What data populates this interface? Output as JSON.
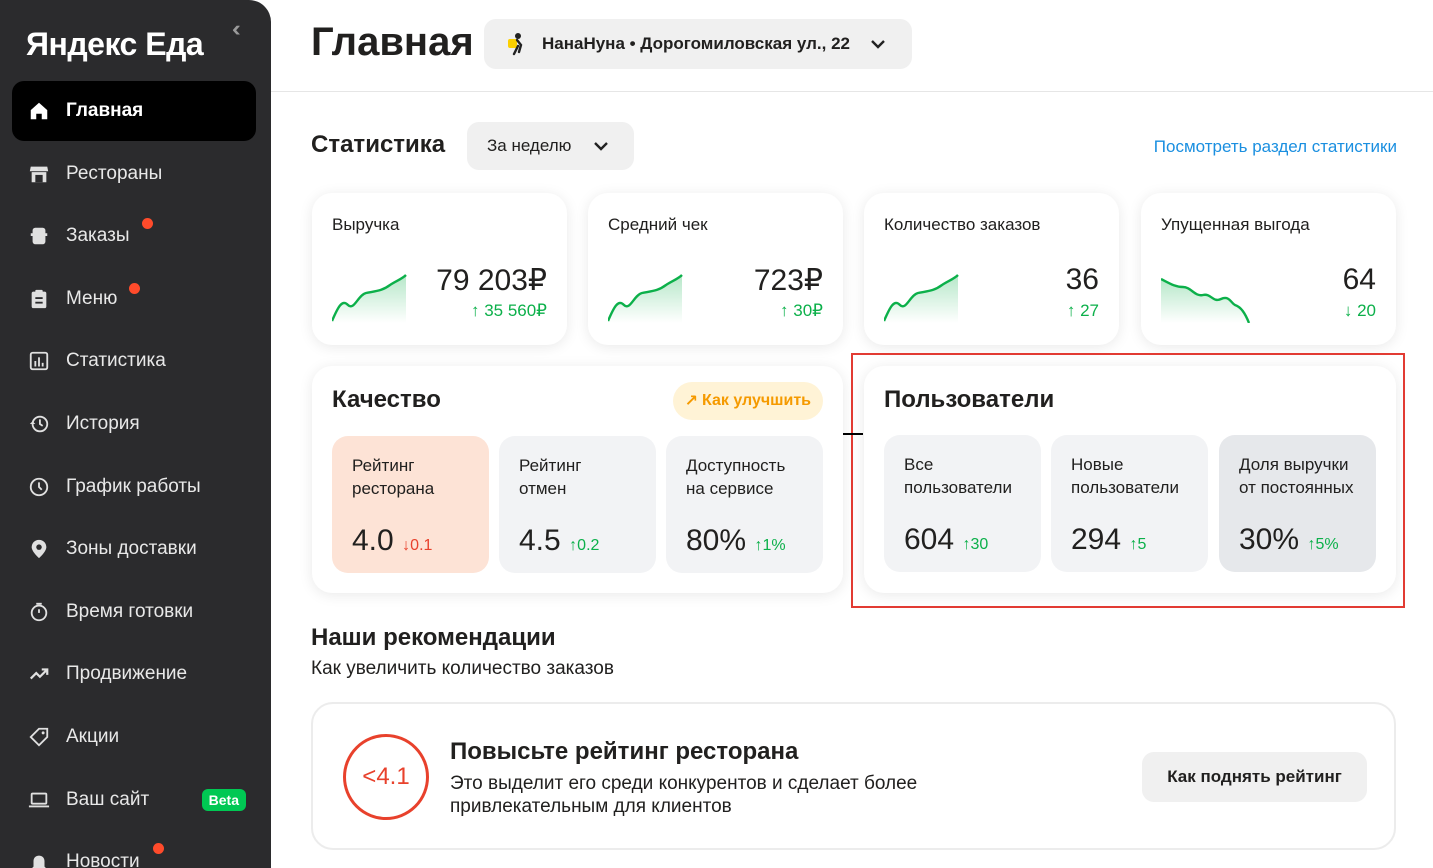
{
  "app": {
    "logo": "Яндекс Еда",
    "collapse_icon": "chevrons-left-icon"
  },
  "sidebar": {
    "items": [
      {
        "label": "Главная",
        "icon": "home-icon",
        "active": true
      },
      {
        "label": "Рестораны",
        "icon": "store-icon"
      },
      {
        "label": "Заказы",
        "icon": "orders-icon",
        "badge_dot": true
      },
      {
        "label": "Меню",
        "icon": "menu-clipboard-icon",
        "badge_dot": true
      },
      {
        "label": "Статистика",
        "icon": "chart-icon"
      },
      {
        "label": "История",
        "icon": "history-icon"
      },
      {
        "label": "График работы",
        "icon": "clock-icon"
      },
      {
        "label": "Зоны доставки",
        "icon": "location-pin-icon"
      },
      {
        "label": "Время готовки",
        "icon": "timer-icon"
      },
      {
        "label": "Продвижение",
        "icon": "trend-up-icon"
      },
      {
        "label": "Акции",
        "icon": "tag-icon"
      },
      {
        "label": "Ваш сайт",
        "icon": "laptop-icon",
        "badge": "Beta"
      },
      {
        "label": "Новости",
        "icon": "bell-icon",
        "badge_dot": true
      }
    ]
  },
  "header": {
    "title": "Главная",
    "place": "НанаНуна • Дорогомиловская ул., 22"
  },
  "stats": {
    "title": "Статистика",
    "period": "За неделю",
    "link": "Посмотреть раздел статистики",
    "metrics": [
      {
        "label": "Выручка",
        "value": "79 203₽",
        "delta": "35 560₽",
        "direction": "up"
      },
      {
        "label": "Средний чек",
        "value": "723₽",
        "delta": "30₽",
        "direction": "up"
      },
      {
        "label": "Количество заказов",
        "value": "36",
        "delta": "27",
        "direction": "up"
      },
      {
        "label": "Упущенная выгода",
        "value": "64",
        "delta": "20",
        "direction": "down"
      }
    ]
  },
  "quality": {
    "title": "Качество",
    "improve": "Как улучшить",
    "items": [
      {
        "label_line1": "Рейтинг",
        "label_line2": "ресторана",
        "value": "4.0",
        "delta": "0.1",
        "direction": "down"
      },
      {
        "label_line1": "Рейтинг",
        "label_line2": "отмен",
        "value": "4.5",
        "delta": "0.2",
        "direction": "up"
      },
      {
        "label_line1": "Доступность",
        "label_line2": "на сервисе",
        "value": "80%",
        "delta": "1%",
        "direction": "up"
      }
    ]
  },
  "users": {
    "title": "Пользователи",
    "items": [
      {
        "label_line1": "Все",
        "label_line2": "пользователи",
        "value": "604",
        "delta": "30",
        "direction": "up"
      },
      {
        "label_line1": "Новые",
        "label_line2": "пользователи",
        "value": "294",
        "delta": "5",
        "direction": "up"
      },
      {
        "label_line1": "Доля выручки",
        "label_line2": "от постоянных",
        "value": "30%",
        "delta": "5%",
        "direction": "up"
      }
    ]
  },
  "recommendations": {
    "title": "Наши рекомендации",
    "subtitle": "Как увеличить количество заказов",
    "card": {
      "rating": "<4.1",
      "heading": "Повысьте рейтинг ресторана",
      "text": "Это выделит его среди конкурентов и сделает более привлекательным для клиентов",
      "button": "Как поднять рейтинг"
    }
  },
  "colors": {
    "accent_up": "#0cb04a",
    "accent_down": "#e8412c",
    "link": "#1a8fe0",
    "highlight": "#e23b33"
  }
}
